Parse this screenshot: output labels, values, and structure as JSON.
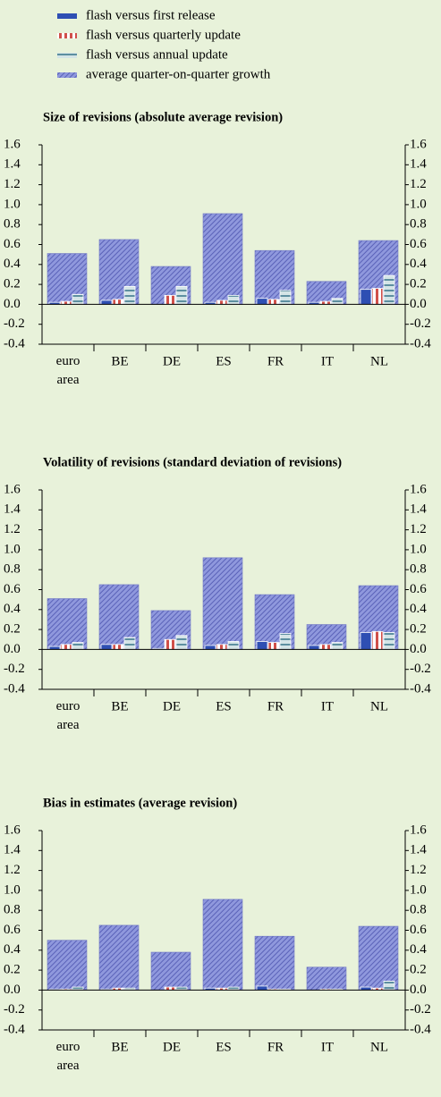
{
  "chart_data": [
    {
      "type": "bar",
      "title": "Size of revisions (absolute average revision)",
      "categories": [
        "euro area",
        "BE",
        "DE",
        "ES",
        "FR",
        "IT",
        "NL"
      ],
      "series": [
        {
          "name": "flash versus first release",
          "color": "#2e4fb3",
          "values": [
            0.02,
            0.04,
            0.0,
            0.02,
            0.06,
            0.02,
            0.15
          ]
        },
        {
          "name": "flash versus quarterly update",
          "color": "#d0504a",
          "values": [
            0.03,
            0.05,
            0.09,
            0.04,
            0.05,
            0.03,
            0.16
          ]
        },
        {
          "name": "flash versus annual update",
          "color": "#5d8fa0",
          "values": [
            0.1,
            0.18,
            0.18,
            0.09,
            0.14,
            0.06,
            0.29
          ]
        },
        {
          "name": "average quarter-on-quarter growth",
          "color": "#8f98dd",
          "values": [
            0.51,
            0.65,
            0.38,
            0.91,
            0.54,
            0.23,
            0.64
          ]
        }
      ],
      "ylim": [
        -0.4,
        1.6
      ],
      "yticks": [
        -0.4,
        -0.2,
        {
          "value": 0,
          "label": "0.0"
        },
        0.2,
        0.4,
        0.6,
        0.8,
        {
          "value": 1,
          "label": "1.0"
        },
        1.2,
        1.4,
        1.6
      ]
    },
    {
      "type": "bar",
      "title": "Volatility of revisions (standard deviation of revisions)",
      "categories": [
        "euro area",
        "BE",
        "DE",
        "ES",
        "FR",
        "IT",
        "NL"
      ],
      "series": [
        {
          "color": "#2e4fb3",
          "values": [
            0.03,
            0.05,
            0.01,
            0.04,
            0.08,
            0.04,
            0.17
          ]
        },
        {
          "color": "#d0504a",
          "values": [
            0.05,
            0.05,
            0.1,
            0.05,
            0.07,
            0.05,
            0.18
          ]
        },
        {
          "color": "#5d8fa0",
          "values": [
            0.07,
            0.12,
            0.14,
            0.08,
            0.16,
            0.07,
            0.17
          ]
        },
        {
          "color": "#8f98dd",
          "values": [
            0.51,
            0.65,
            0.39,
            0.92,
            0.55,
            0.25,
            0.64
          ]
        }
      ],
      "ylim": [
        -0.4,
        1.6
      ],
      "yticks": [
        -0.4,
        -0.2,
        {
          "value": 0,
          "label": "0.0"
        },
        0.2,
        0.4,
        0.6,
        0.8,
        {
          "value": 1,
          "label": "1.0"
        },
        1.2,
        1.4,
        1.6
      ]
    },
    {
      "type": "bar",
      "title": "Bias in estimates (average revision)",
      "categories": [
        "euro area",
        "BE",
        "DE",
        "ES",
        "FR",
        "IT",
        "NL"
      ],
      "series": [
        {
          "color": "#2e4fb3",
          "values": [
            0.01,
            0.01,
            0.0,
            0.02,
            0.04,
            0.0,
            0.03
          ]
        },
        {
          "color": "#d0504a",
          "values": [
            0.01,
            0.02,
            0.03,
            0.02,
            0.01,
            0.01,
            0.02
          ]
        },
        {
          "color": "#5d8fa0",
          "values": [
            0.03,
            0.02,
            0.03,
            0.03,
            0.01,
            0.01,
            0.09
          ]
        },
        {
          "color": "#8f98dd",
          "values": [
            0.5,
            0.65,
            0.38,
            0.91,
            0.54,
            0.23,
            0.64
          ]
        }
      ],
      "ylim": [
        -0.4,
        1.6
      ],
      "yticks": [
        -0.4,
        -0.2,
        {
          "value": 0,
          "label": "0.0"
        },
        0.2,
        0.4,
        0.6,
        0.8,
        {
          "value": 1,
          "label": "1.0"
        },
        1.2,
        1.4,
        1.6
      ]
    }
  ]
}
